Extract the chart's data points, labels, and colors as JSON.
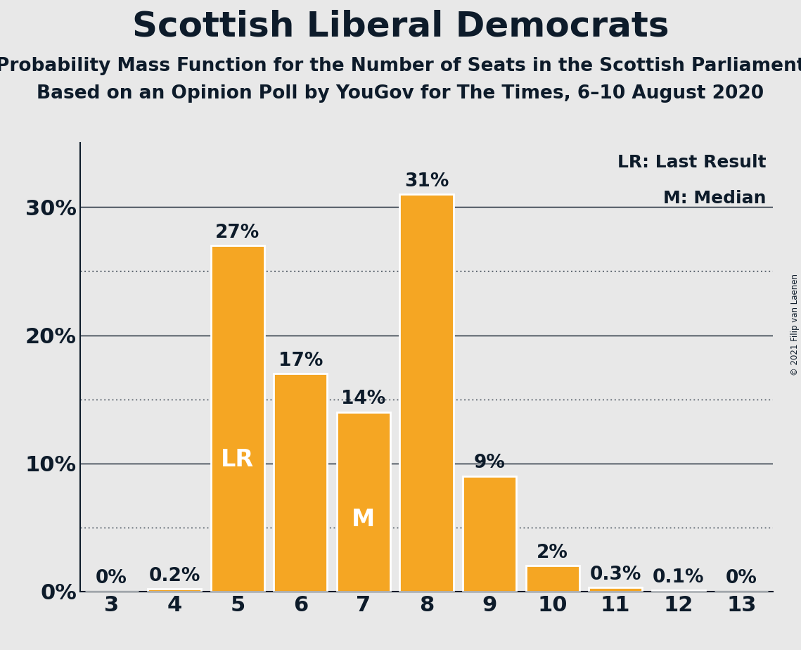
{
  "title": "Scottish Liberal Democrats",
  "subtitle1": "Probability Mass Function for the Number of Seats in the Scottish Parliament",
  "subtitle2": "Based on an Opinion Poll by YouGov for The Times, 6–10 August 2020",
  "copyright": "© 2021 Filip van Laenen",
  "categories": [
    3,
    4,
    5,
    6,
    7,
    8,
    9,
    10,
    11,
    12,
    13
  ],
  "values": [
    0.0,
    0.2,
    27.0,
    17.0,
    14.0,
    31.0,
    9.0,
    2.0,
    0.3,
    0.1,
    0.0
  ],
  "labels": [
    "0%",
    "0.2%",
    "27%",
    "17%",
    "14%",
    "31%",
    "9%",
    "2%",
    "0.3%",
    "0.1%",
    "0%"
  ],
  "bar_color": "#F5A623",
  "bar_edge_color": "#FFFFFF",
  "lr_bar": 5,
  "median_bar": 7,
  "lr_label": "LR",
  "median_label": "M",
  "inner_label_color": "#FFFFFF",
  "outer_label_color": "#0D1B2A",
  "background_color": "#E8E8E8",
  "plot_background_color": "#E8E8E8",
  "axis_color": "#0D1B2A",
  "grid_major_color": "#0D1B2A",
  "grid_minor_color": "#0D1B2A",
  "title_color": "#0D1B2A",
  "title_fontsize": 36,
  "subtitle_fontsize": 19,
  "tick_label_fontsize": 22,
  "bar_label_fontsize": 19,
  "inner_label_fontsize": 22,
  "legend_fontsize": 18,
  "yticks": [
    0,
    10,
    20,
    30
  ],
  "yticks_minor": [
    5,
    15,
    25
  ],
  "ylim": [
    0,
    35
  ],
  "xlim": [
    2.5,
    13.5
  ]
}
